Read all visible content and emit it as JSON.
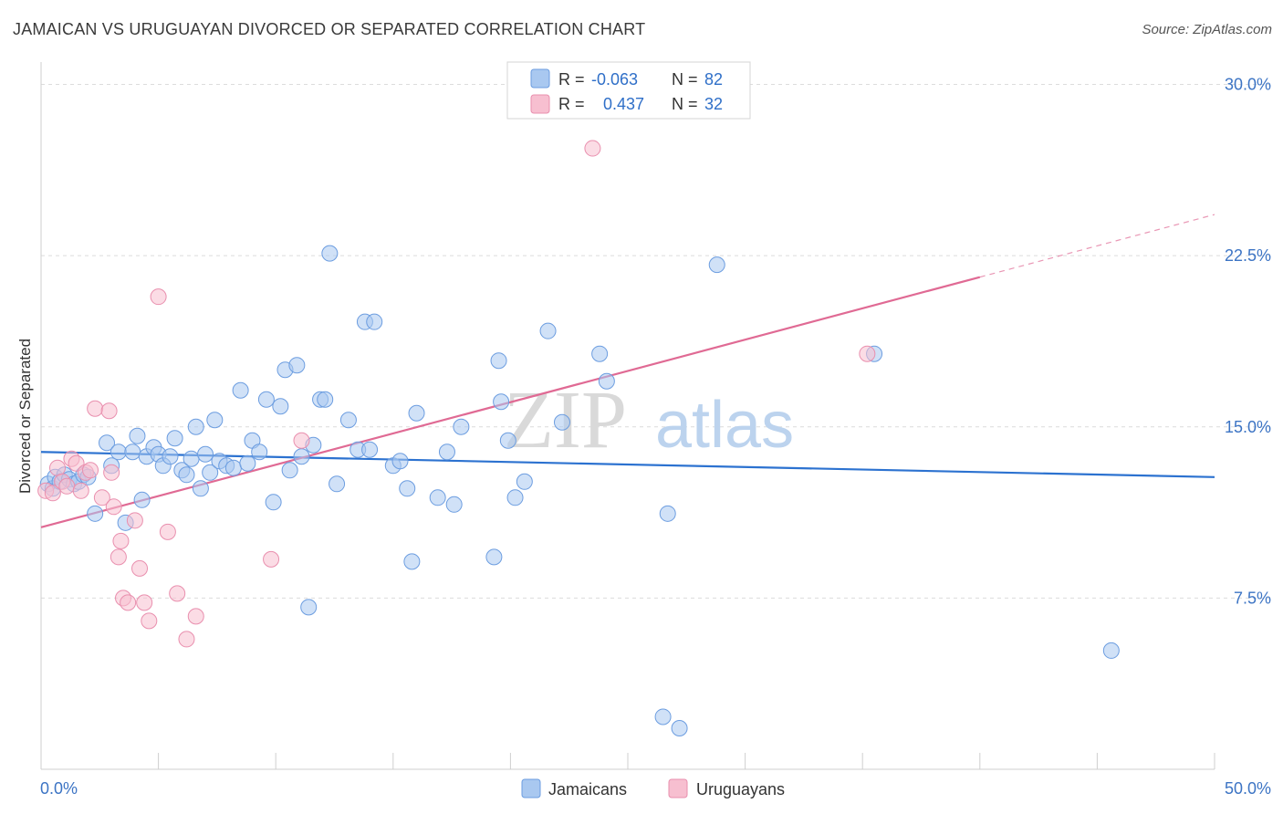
{
  "title": "JAMAICAN VS URUGUAYAN DIVORCED OR SEPARATED CORRELATION CHART",
  "source": "Source: ZipAtlas.com",
  "watermark": {
    "zip": "ZIP",
    "atlas": "atlas"
  },
  "legend": {
    "r_label": "R =",
    "n_label": "N =",
    "rows": [
      {
        "r": "-0.063",
        "n": "82",
        "color": "#a9c8f0",
        "stroke": "#6c9de0"
      },
      {
        "r": "0.437",
        "n": "32",
        "color": "#f7bfd0",
        "stroke": "#e98fae"
      }
    ]
  },
  "bottom_legend": [
    "Jamaicans",
    "Uruguayans"
  ],
  "chart_data": {
    "type": "scatter",
    "title": "JAMAICAN VS URUGUAYAN DIVORCED OR SEPARATED CORRELATION CHART",
    "xlabel": "",
    "ylabel": "Divorced or Separated",
    "xlim": [
      0,
      50
    ],
    "ylim": [
      0,
      30.5
    ],
    "x_tick_labels": [
      "0.0%",
      "50.0%"
    ],
    "y_ticks": [
      7.5,
      15.0,
      22.5,
      30.0
    ],
    "y_tick_labels": [
      "7.5%",
      "15.0%",
      "22.5%",
      "30.0%"
    ],
    "grid": true,
    "legend_placement": "top-center",
    "series": [
      {
        "name": "Jamaicans",
        "color": "#6c9de0",
        "fill": "#a9c8f0",
        "trend": {
          "x": [
            0,
            50
          ],
          "y": [
            13.9,
            12.8
          ],
          "dashed_from": null
        },
        "points": [
          [
            0.3,
            12.5
          ],
          [
            0.5,
            12.3
          ],
          [
            0.6,
            12.8
          ],
          [
            0.8,
            12.6
          ],
          [
            1.0,
            12.9
          ],
          [
            1.2,
            12.7
          ],
          [
            1.4,
            12.5
          ],
          [
            1.6,
            12.6
          ],
          [
            1.8,
            12.9
          ],
          [
            2.0,
            12.8
          ],
          [
            2.3,
            11.2
          ],
          [
            2.8,
            14.3
          ],
          [
            3.0,
            13.3
          ],
          [
            3.3,
            13.9
          ],
          [
            3.6,
            10.8
          ],
          [
            3.9,
            13.9
          ],
          [
            4.1,
            14.6
          ],
          [
            4.3,
            11.8
          ],
          [
            4.5,
            13.7
          ],
          [
            4.8,
            14.1
          ],
          [
            5.0,
            13.8
          ],
          [
            5.2,
            13.3
          ],
          [
            5.5,
            13.7
          ],
          [
            5.7,
            14.5
          ],
          [
            6.0,
            13.1
          ],
          [
            6.2,
            12.9
          ],
          [
            6.4,
            13.6
          ],
          [
            6.6,
            15.0
          ],
          [
            6.8,
            12.3
          ],
          [
            7.0,
            13.8
          ],
          [
            7.2,
            13.0
          ],
          [
            7.4,
            15.3
          ],
          [
            7.6,
            13.5
          ],
          [
            7.9,
            13.3
          ],
          [
            8.2,
            13.2
          ],
          [
            8.5,
            16.6
          ],
          [
            8.8,
            13.4
          ],
          [
            9.0,
            14.4
          ],
          [
            9.3,
            13.9
          ],
          [
            9.6,
            16.2
          ],
          [
            9.9,
            11.7
          ],
          [
            10.2,
            15.9
          ],
          [
            10.4,
            17.5
          ],
          [
            10.6,
            13.1
          ],
          [
            10.9,
            17.7
          ],
          [
            11.1,
            13.7
          ],
          [
            11.4,
            7.1
          ],
          [
            11.6,
            14.2
          ],
          [
            11.9,
            16.2
          ],
          [
            12.1,
            16.2
          ],
          [
            12.3,
            22.6
          ],
          [
            12.6,
            12.5
          ],
          [
            13.1,
            15.3
          ],
          [
            13.5,
            14.0
          ],
          [
            13.8,
            19.6
          ],
          [
            14.0,
            14.0
          ],
          [
            14.2,
            19.6
          ],
          [
            15.0,
            13.3
          ],
          [
            15.3,
            13.5
          ],
          [
            15.6,
            12.3
          ],
          [
            15.8,
            9.1
          ],
          [
            16.0,
            15.6
          ],
          [
            16.9,
            11.9
          ],
          [
            17.3,
            13.9
          ],
          [
            17.6,
            11.6
          ],
          [
            17.9,
            15.0
          ],
          [
            19.3,
            9.3
          ],
          [
            19.5,
            17.9
          ],
          [
            19.6,
            16.1
          ],
          [
            19.9,
            14.4
          ],
          [
            20.2,
            11.9
          ],
          [
            20.6,
            12.6
          ],
          [
            21.6,
            19.2
          ],
          [
            22.2,
            15.2
          ],
          [
            23.8,
            18.2
          ],
          [
            24.1,
            17.0
          ],
          [
            26.5,
            2.3
          ],
          [
            26.7,
            11.2
          ],
          [
            27.2,
            1.8
          ],
          [
            28.8,
            22.1
          ],
          [
            35.5,
            18.2
          ],
          [
            45.6,
            5.2
          ]
        ]
      },
      {
        "name": "Uruguayans",
        "color": "#e98fae",
        "fill": "#f7bfd0",
        "trend": {
          "x": [
            0,
            50
          ],
          "y": [
            10.6,
            24.3
          ],
          "dashed_from": 40
        },
        "points": [
          [
            0.2,
            12.2
          ],
          [
            0.5,
            12.1
          ],
          [
            0.7,
            13.2
          ],
          [
            0.9,
            12.6
          ],
          [
            1.1,
            12.4
          ],
          [
            1.3,
            13.6
          ],
          [
            1.5,
            13.4
          ],
          [
            1.7,
            12.2
          ],
          [
            1.9,
            13.0
          ],
          [
            2.1,
            13.1
          ],
          [
            2.3,
            15.8
          ],
          [
            2.6,
            11.9
          ],
          [
            2.9,
            15.7
          ],
          [
            3.1,
            11.5
          ],
          [
            3.3,
            9.3
          ],
          [
            3.4,
            10.0
          ],
          [
            3.5,
            7.5
          ],
          [
            3.7,
            7.3
          ],
          [
            4.0,
            10.9
          ],
          [
            4.2,
            8.8
          ],
          [
            4.4,
            7.3
          ],
          [
            4.6,
            6.5
          ],
          [
            5.0,
            20.7
          ],
          [
            5.4,
            10.4
          ],
          [
            5.8,
            7.7
          ],
          [
            6.2,
            5.7
          ],
          [
            6.6,
            6.7
          ],
          [
            9.8,
            9.2
          ],
          [
            11.1,
            14.4
          ],
          [
            23.5,
            27.2
          ],
          [
            35.2,
            18.2
          ],
          [
            3.0,
            13.0
          ]
        ]
      }
    ]
  }
}
